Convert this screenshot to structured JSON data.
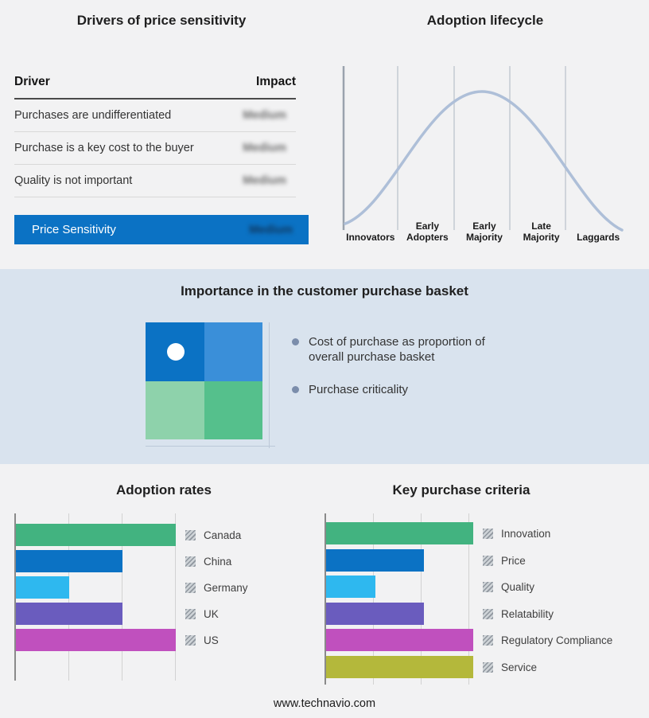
{
  "colors": {
    "accent_blue": "#0b72c4",
    "band_background": "#d9e3ee",
    "page_background": "#f2f2f3",
    "curve_line": "#aebfd8"
  },
  "drivers_table": {
    "title": "Drivers of price sensitivity",
    "col_driver": "Driver",
    "col_impact": "Impact",
    "rows": [
      {
        "driver": "Purchases are undifferentiated",
        "impact": "Medium"
      },
      {
        "driver": "Purchase is a key cost to the buyer",
        "impact": "Medium"
      },
      {
        "driver": "Quality is not important",
        "impact": "Medium"
      }
    ],
    "summary": {
      "label": "Price Sensitivity",
      "impact": "Medium"
    }
  },
  "purchase_basket": {
    "title": "Importance in the customer purchase basket",
    "bullets": [
      "Cost of purchase as proportion of overall purchase basket",
      "Purchase criticality"
    ],
    "quadrant_colors": [
      "#0b72c4",
      "#3a8fd9",
      "#8ed2ab",
      "#55c08c"
    ]
  },
  "footer": {
    "url": "www.technavio.com"
  },
  "chart_data": [
    {
      "type": "line",
      "title": "Adoption lifecycle",
      "curve": "bell",
      "categories": [
        "Innovators",
        "Early Adopters",
        "Early Majority",
        "Late Majority",
        "Laggards"
      ],
      "values": [
        0.1,
        0.6,
        1.0,
        0.6,
        0.1
      ],
      "ylim": [
        0,
        1
      ],
      "grid": true,
      "line_color": "#aebfd8"
    },
    {
      "type": "bar",
      "title": "Adoption rates",
      "orientation": "horizontal",
      "categories": [
        "Canada",
        "China",
        "Germany",
        "UK",
        "US"
      ],
      "values": [
        3,
        2,
        1,
        2,
        3
      ],
      "colors": [
        "#42b380",
        "#0b72c4",
        "#2eb8ef",
        "#6a5cbe",
        "#c050be"
      ],
      "xlim": [
        0,
        3
      ],
      "grid": true,
      "legend_position": "right"
    },
    {
      "type": "bar",
      "title": "Key purchase criteria",
      "orientation": "horizontal",
      "categories": [
        "Innovation",
        "Price",
        "Quality",
        "Relatability",
        "Regulatory Compliance",
        "Service"
      ],
      "values": [
        3,
        2,
        1,
        2,
        3,
        3
      ],
      "colors": [
        "#42b380",
        "#0b72c4",
        "#2eb8ef",
        "#6a5cbe",
        "#c050be",
        "#b4b83b"
      ],
      "xlim": [
        0,
        3
      ],
      "grid": true,
      "legend_position": "right"
    }
  ]
}
